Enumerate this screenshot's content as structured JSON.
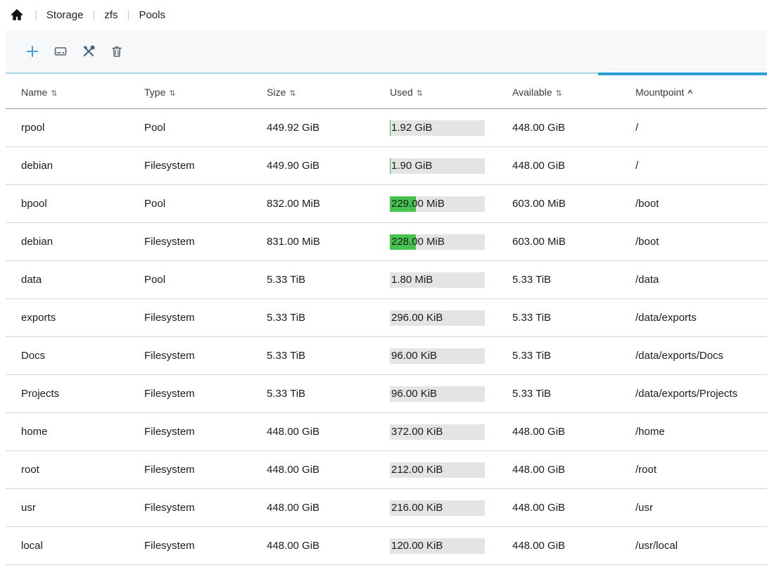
{
  "breadcrumb": {
    "separator": "|",
    "items": [
      {
        "label": "Storage"
      },
      {
        "label": "zfs"
      },
      {
        "label": "Pools"
      }
    ]
  },
  "toolbar": {
    "icons": [
      {
        "name": "add-icon"
      },
      {
        "name": "drive-icon"
      },
      {
        "name": "tools-icon"
      },
      {
        "name": "trash-icon"
      }
    ]
  },
  "colors": {
    "accent_blue": "#2b9fd6",
    "track_blue": "#aad4ee",
    "used_fill_green": "#44c34f",
    "used_bar_bg": "#e4e4e4"
  },
  "table": {
    "sort_icon": "⇅",
    "sort_asc_icon": "^",
    "columns": [
      {
        "label": "Name",
        "sorted": "none"
      },
      {
        "label": "Type",
        "sorted": "none"
      },
      {
        "label": "Size",
        "sorted": "none"
      },
      {
        "label": "Used",
        "sorted": "none"
      },
      {
        "label": "Available",
        "sorted": "none"
      },
      {
        "label": "Mountpoint",
        "sorted": "asc"
      }
    ],
    "rows": [
      {
        "name": "rpool",
        "type": "Pool",
        "size": "449.92 GiB",
        "used": "1.92 GiB",
        "used_percent": 0.4,
        "available": "448.00 GiB",
        "mountpoint": "/"
      },
      {
        "name": "debian",
        "type": "Filesystem",
        "size": "449.90 GiB",
        "used": "1.90 GiB",
        "used_percent": 0.4,
        "available": "448.00 GiB",
        "mountpoint": "/"
      },
      {
        "name": "bpool",
        "type": "Pool",
        "size": "832.00 MiB",
        "used": "229.00 MiB",
        "used_percent": 27.5,
        "available": "603.00 MiB",
        "mountpoint": "/boot"
      },
      {
        "name": "debian",
        "type": "Filesystem",
        "size": "831.00 MiB",
        "used": "228.00 MiB",
        "used_percent": 27.4,
        "available": "603.00 MiB",
        "mountpoint": "/boot"
      },
      {
        "name": "data",
        "type": "Pool",
        "size": "5.33 TiB",
        "used": "1.80 MiB",
        "used_percent": 0,
        "available": "5.33 TiB",
        "mountpoint": "/data"
      },
      {
        "name": "exports",
        "type": "Filesystem",
        "size": "5.33 TiB",
        "used": "296.00 KiB",
        "used_percent": 0,
        "available": "5.33 TiB",
        "mountpoint": "/data/exports"
      },
      {
        "name": "Docs",
        "type": "Filesystem",
        "size": "5.33 TiB",
        "used": "96.00 KiB",
        "used_percent": 0,
        "available": "5.33 TiB",
        "mountpoint": "/data/exports/Docs"
      },
      {
        "name": "Projects",
        "type": "Filesystem",
        "size": "5.33 TiB",
        "used": "96.00 KiB",
        "used_percent": 0,
        "available": "5.33 TiB",
        "mountpoint": "/data/exports/Projects"
      },
      {
        "name": "home",
        "type": "Filesystem",
        "size": "448.00 GiB",
        "used": "372.00 KiB",
        "used_percent": 0,
        "available": "448.00 GiB",
        "mountpoint": "/home"
      },
      {
        "name": "root",
        "type": "Filesystem",
        "size": "448.00 GiB",
        "used": "212.00 KiB",
        "used_percent": 0,
        "available": "448.00 GiB",
        "mountpoint": "/root"
      },
      {
        "name": "usr",
        "type": "Filesystem",
        "size": "448.00 GiB",
        "used": "216.00 KiB",
        "used_percent": 0,
        "available": "448.00 GiB",
        "mountpoint": "/usr"
      },
      {
        "name": "local",
        "type": "Filesystem",
        "size": "448.00 GiB",
        "used": "120.00 KiB",
        "used_percent": 0,
        "available": "448.00 GiB",
        "mountpoint": "/usr/local"
      }
    ]
  }
}
